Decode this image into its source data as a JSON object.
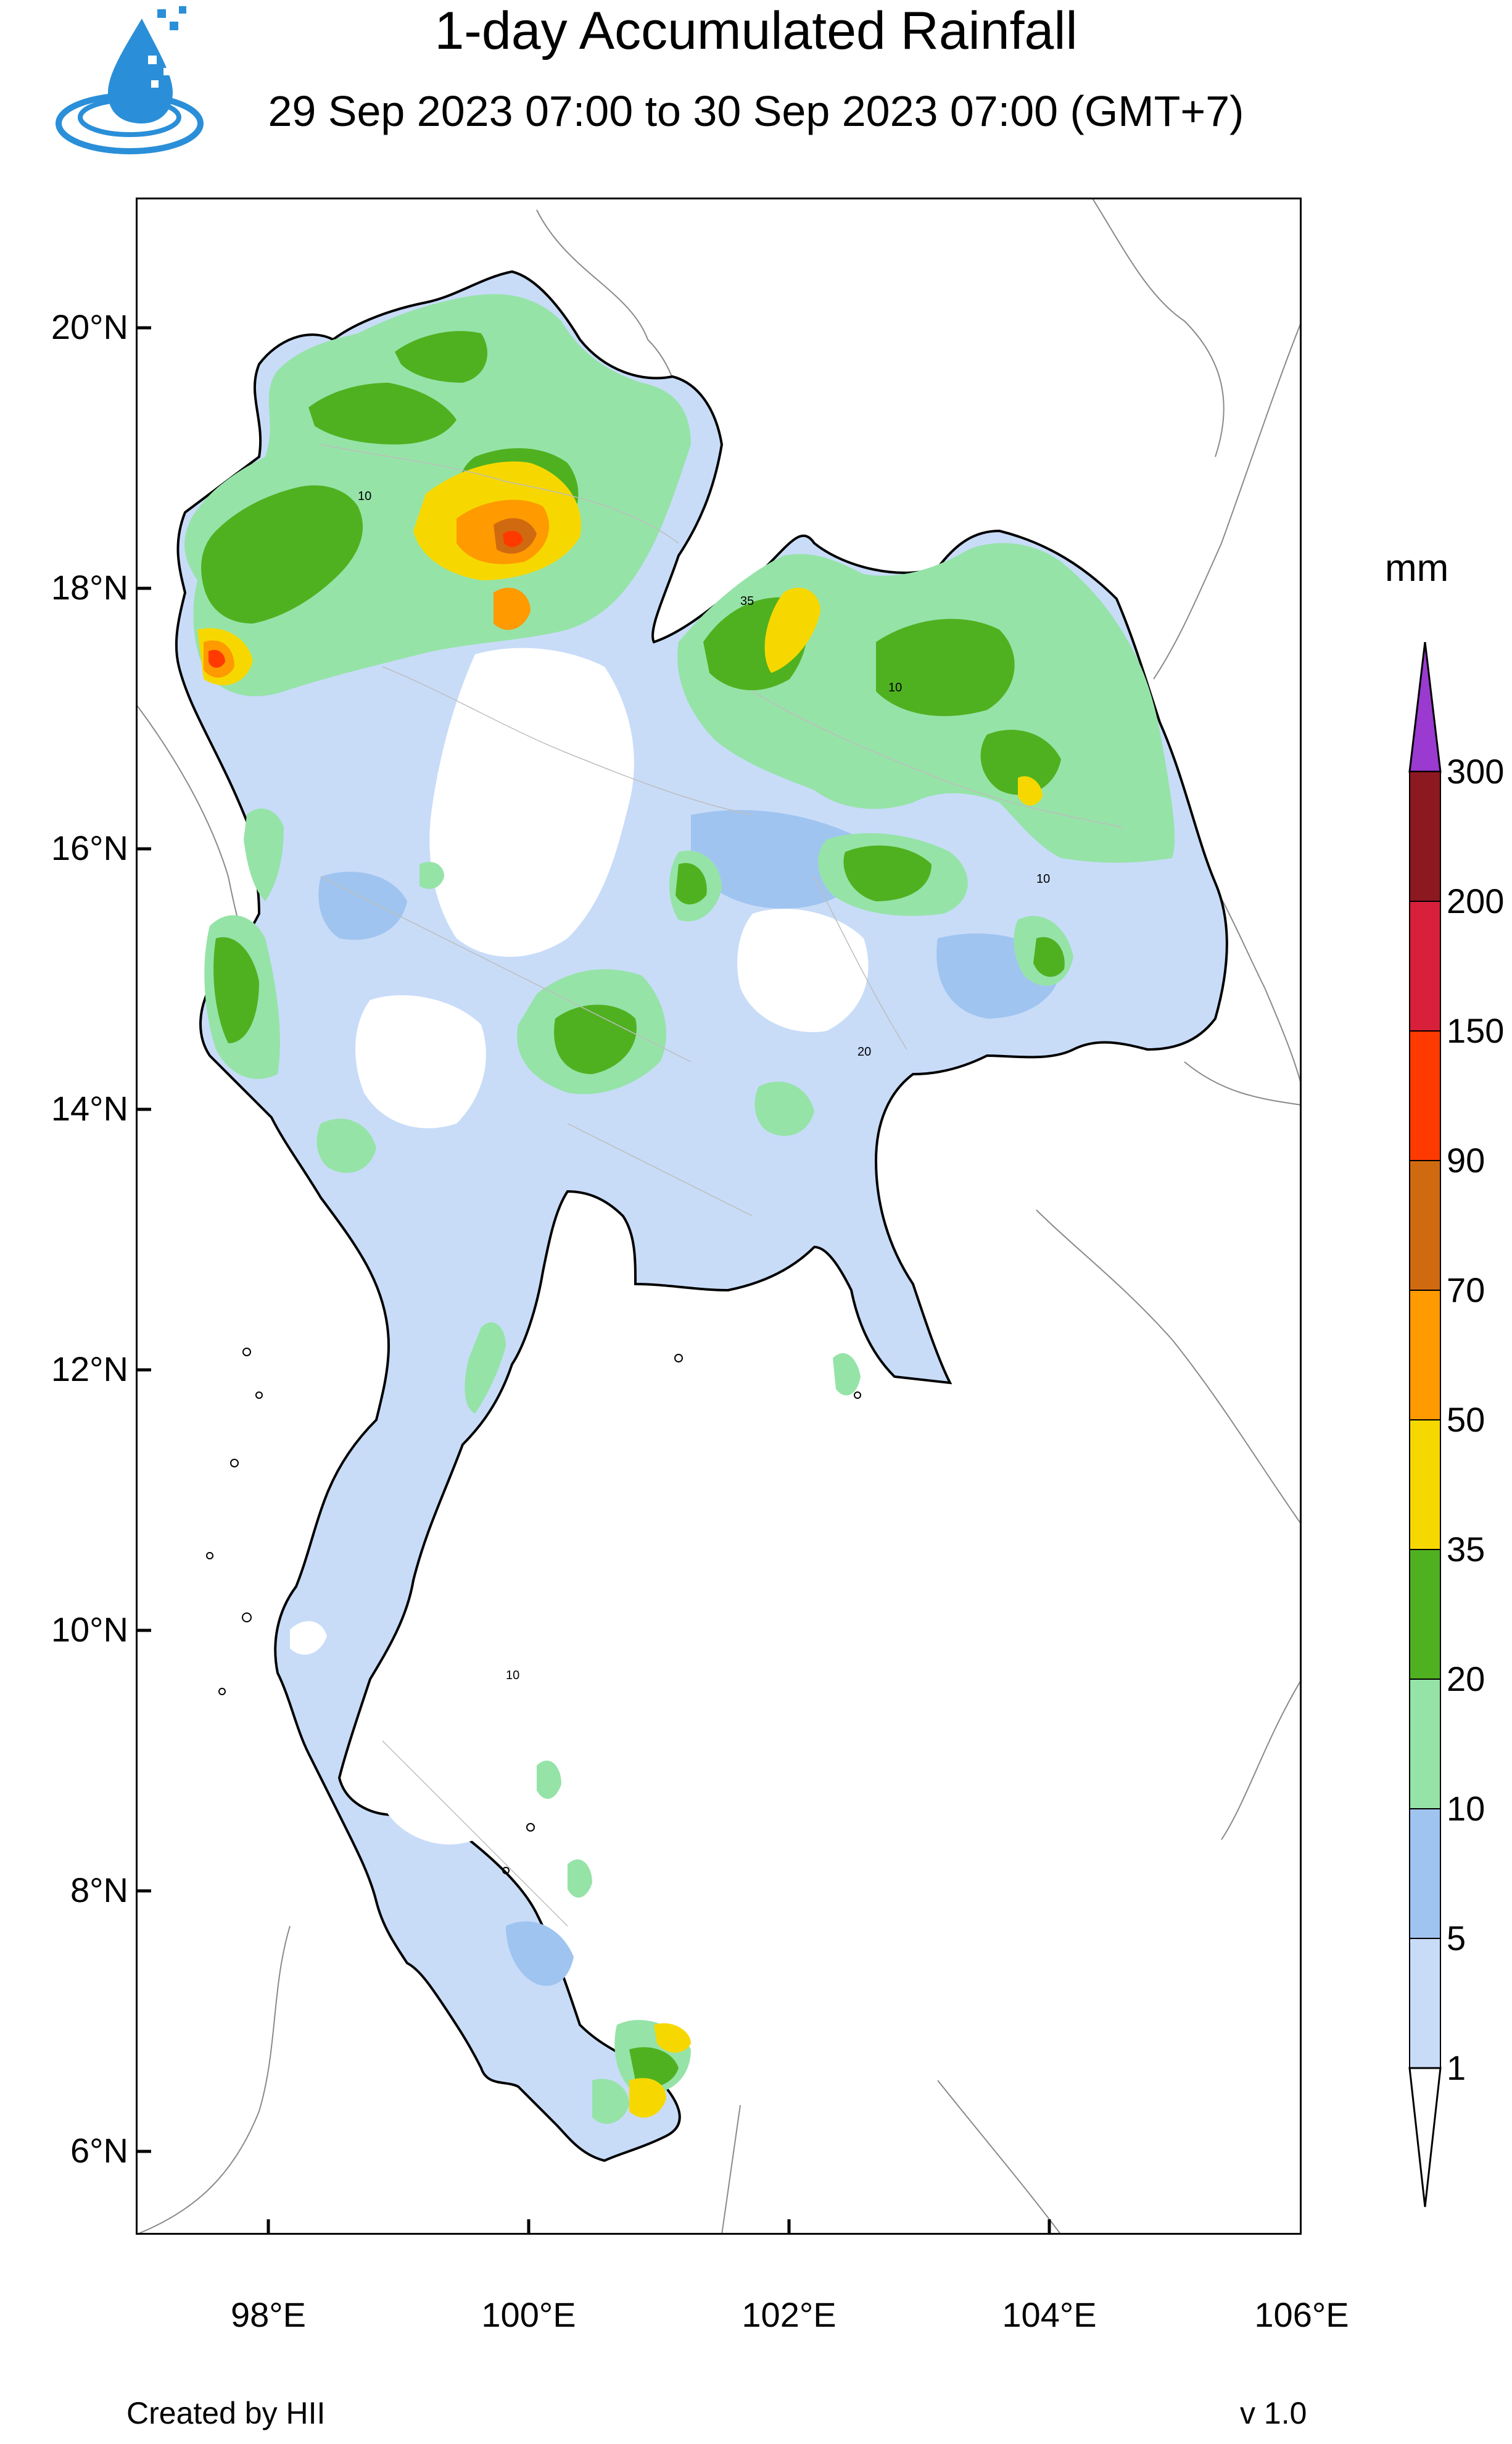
{
  "title": "1-day Accumulated Rainfall",
  "subtitle": "29 Sep 2023 07:00 to 30 Sep 2023 07:00 (GMT+7)",
  "logo_icon": "water-drop-logo-icon",
  "map": {
    "lat_ticks": [
      "20°N",
      "18°N",
      "16°N",
      "14°N",
      "12°N",
      "10°N",
      "8°N",
      "6°N"
    ],
    "lon_ticks": [
      "98°E",
      "100°E",
      "102°E",
      "104°E",
      "106°E"
    ],
    "contour_labels": [
      "10",
      "20",
      "35"
    ]
  },
  "colorbar": {
    "unit": "mm",
    "levels": [
      "1",
      "5",
      "10",
      "20",
      "35",
      "50",
      "70",
      "90",
      "150",
      "200",
      "300"
    ],
    "colors": [
      "#ffffff",
      "#c8dcf8",
      "#a0c4f0",
      "#96e3a8",
      "#4fb120",
      "#f6d800",
      "#ff9a00",
      "#d06a10",
      "#ff3a00",
      "#d8203a",
      "#8c1820",
      "#9a3ad0"
    ]
  },
  "footer": {
    "credit": "Created by HII",
    "version": "v 1.0"
  }
}
